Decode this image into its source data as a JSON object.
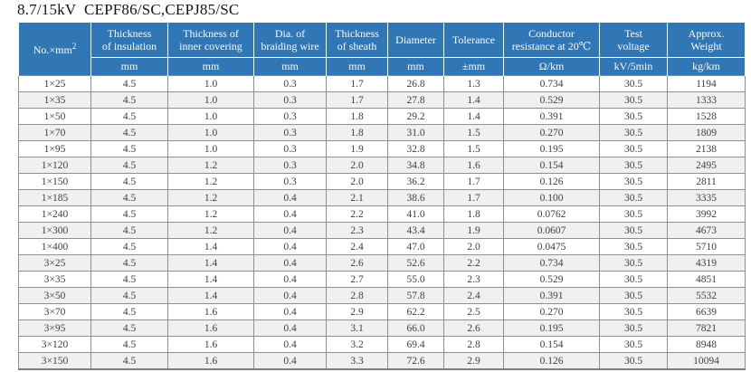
{
  "page": {
    "title": "8.7/15kV  CEPF86/SC,CEPJ85/SC"
  },
  "colors": {
    "header_blue": "#3176b5",
    "header_text": "#f8fafc",
    "row_alt": "#f0f0f0",
    "grid_line": "#8f8f8f",
    "data_text": "#404040"
  },
  "table": {
    "corner": {
      "label": "No.×mm",
      "superscript": "2"
    },
    "columns": [
      {
        "lines": [
          "Thickness",
          "of insulation"
        ],
        "unit": "mm"
      },
      {
        "lines": [
          "Thickness of",
          "inner covering"
        ],
        "unit": "mm"
      },
      {
        "lines": [
          "Dia. of",
          "braiding wire"
        ],
        "unit": "mm"
      },
      {
        "lines": [
          "Thickness",
          "of sheath"
        ],
        "unit": "mm"
      },
      {
        "lines": [
          "Diameter"
        ],
        "unit": "mm"
      },
      {
        "lines": [
          "Tolerance"
        ],
        "unit": "±mm"
      },
      {
        "lines": [
          "Conductor",
          "resistance at 20℃"
        ],
        "unit": "Ω/km"
      },
      {
        "lines": [
          "Test",
          "voltage"
        ],
        "unit": "kV/5min"
      },
      {
        "lines": [
          "Approx.",
          "Weight"
        ],
        "unit": "kg/km"
      }
    ],
    "rows": [
      [
        "1×25",
        "4.5",
        "1.0",
        "0.3",
        "1.7",
        "26.8",
        "1.3",
        "0.734",
        "30.5",
        "1194"
      ],
      [
        "1×35",
        "4.5",
        "1.0",
        "0.3",
        "1.7",
        "27.8",
        "1.4",
        "0.529",
        "30.5",
        "1333"
      ],
      [
        "1×50",
        "4.5",
        "1.0",
        "0.3",
        "1.8",
        "29.2",
        "1.4",
        "0.391",
        "30.5",
        "1528"
      ],
      [
        "1×70",
        "4.5",
        "1.0",
        "0.3",
        "1.8",
        "31.0",
        "1.5",
        "0.270",
        "30.5",
        "1809"
      ],
      [
        "1×95",
        "4.5",
        "1.0",
        "0.3",
        "1.9",
        "32.8",
        "1.5",
        "0.195",
        "30.5",
        "2138"
      ],
      [
        "1×120",
        "4.5",
        "1.2",
        "0.3",
        "2.0",
        "34.8",
        "1.6",
        "0.154",
        "30.5",
        "2495"
      ],
      [
        "1×150",
        "4.5",
        "1.2",
        "0.3",
        "2.0",
        "36.2",
        "1.7",
        "0.126",
        "30.5",
        "2811"
      ],
      [
        "1×185",
        "4.5",
        "1.2",
        "0.4",
        "2.1",
        "38.6",
        "1.7",
        "0.100",
        "30.5",
        "3335"
      ],
      [
        "1×240",
        "4.5",
        "1.2",
        "0.4",
        "2.2",
        "41.0",
        "1.8",
        "0.0762",
        "30.5",
        "3992"
      ],
      [
        "1×300",
        "4.5",
        "1.2",
        "0.4",
        "2.3",
        "43.4",
        "1.9",
        "0.0607",
        "30.5",
        "4673"
      ],
      [
        "1×400",
        "4.5",
        "1.4",
        "0.4",
        "2.4",
        "47.0",
        "2.0",
        "0.0475",
        "30.5",
        "5710"
      ],
      [
        "3×25",
        "4.5",
        "1.4",
        "0.4",
        "2.6",
        "52.6",
        "2.2",
        "0.734",
        "30.5",
        "4319"
      ],
      [
        "3×35",
        "4.5",
        "1.4",
        "0.4",
        "2.7",
        "55.0",
        "2.3",
        "0.529",
        "30.5",
        "4851"
      ],
      [
        "3×50",
        "4.5",
        "1.4",
        "0.4",
        "2.8",
        "57.8",
        "2.4",
        "0.391",
        "30.5",
        "5532"
      ],
      [
        "3×70",
        "4.5",
        "1.6",
        "0.4",
        "2.9",
        "62.2",
        "2.5",
        "0.270",
        "30.5",
        "6639"
      ],
      [
        "3×95",
        "4.5",
        "1.6",
        "0.4",
        "3.1",
        "66.0",
        "2.6",
        "0.195",
        "30.5",
        "7821"
      ],
      [
        "3×120",
        "4.5",
        "1.6",
        "0.4",
        "3.2",
        "69.4",
        "2.8",
        "0.154",
        "30.5",
        "8948"
      ],
      [
        "3×150",
        "4.5",
        "1.6",
        "0.4",
        "3.3",
        "72.6",
        "2.9",
        "0.126",
        "30.5",
        "10094"
      ]
    ]
  }
}
